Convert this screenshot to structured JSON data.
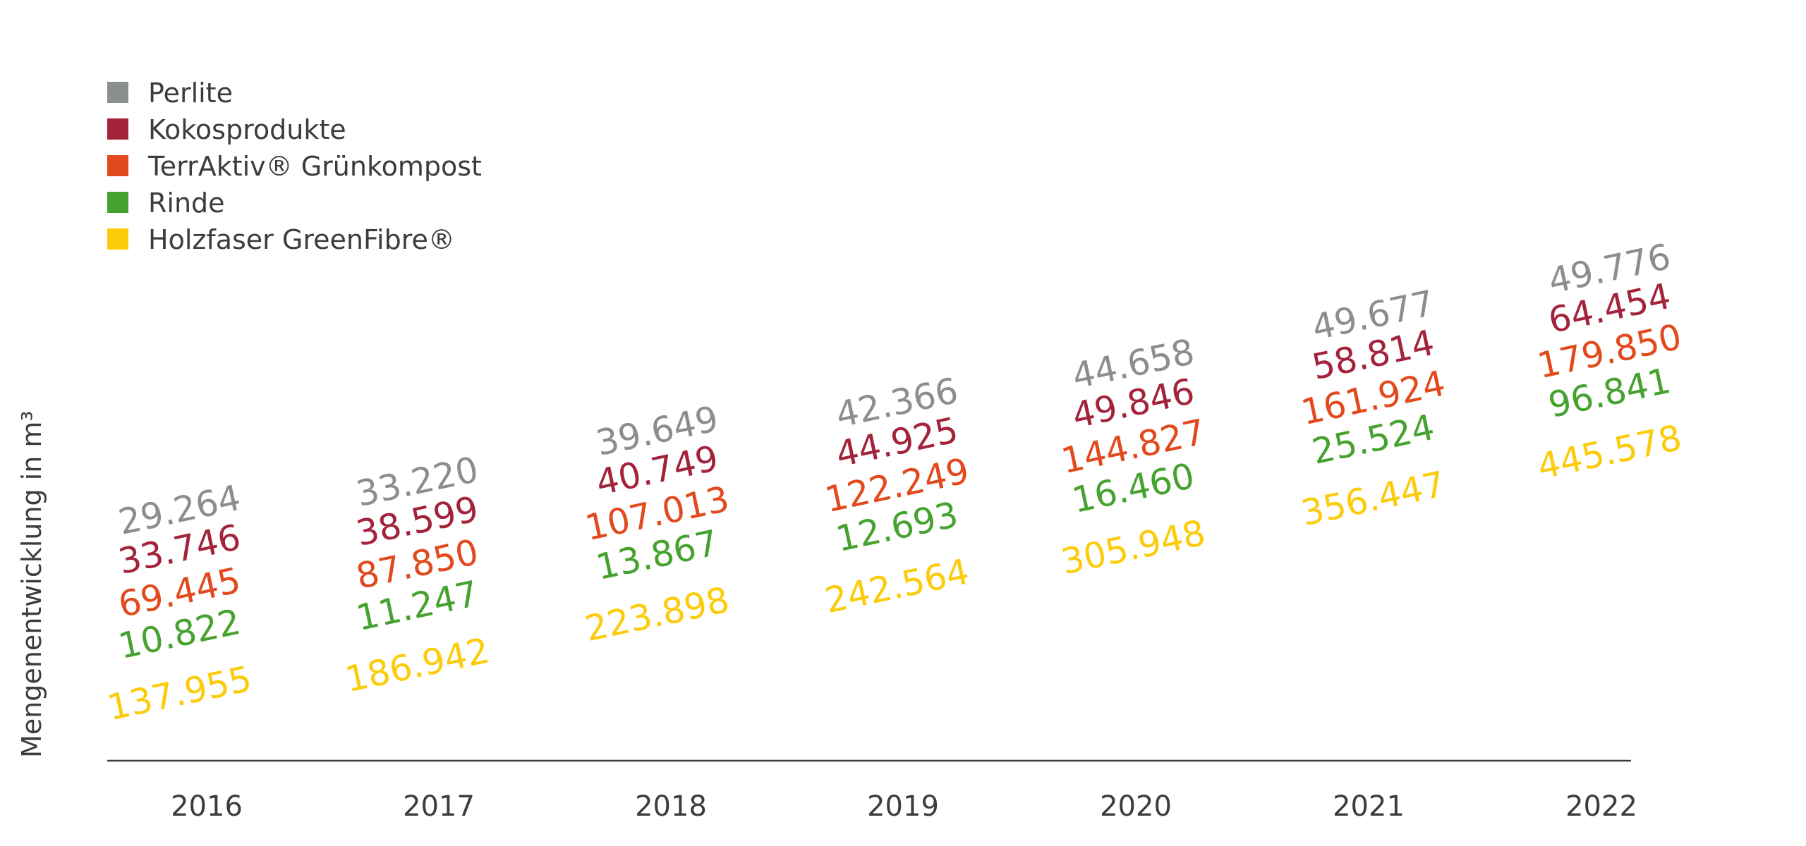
{
  "chart_data": {
    "type": "scatter",
    "title": "",
    "xlabel": "",
    "ylabel": "Mengenentwicklung in m³",
    "categories": [
      "2016",
      "2017",
      "2018",
      "2019",
      "2020",
      "2021",
      "2022"
    ],
    "legend_position": "top-left",
    "grid": false,
    "ylim": [
      0,
      450000
    ],
    "series": [
      {
        "name": "Perlite",
        "color": "#8a8f8e",
        "values": [
          29264,
          33220,
          39649,
          42366,
          44658,
          49677,
          49776
        ],
        "labels": [
          "29.264",
          "33.220",
          "39.649",
          "42.366",
          "44.658",
          "49.677",
          "49.776"
        ]
      },
      {
        "name": "Kokosprodukte",
        "color": "#a3233b",
        "values": [
          33746,
          38599,
          40749,
          44925,
          49846,
          58814,
          64454
        ],
        "labels": [
          "33.746",
          "38.599",
          "40.749",
          "44.925",
          "49.846",
          "58.814",
          "64.454"
        ]
      },
      {
        "name": "TerrAktiv® Grünkompost",
        "color": "#e2491c",
        "values": [
          69445,
          87850,
          107013,
          122249,
          144827,
          161924,
          179850
        ],
        "labels": [
          "69.445",
          "87.850",
          "107.013",
          "122.249",
          "144.827",
          "161.924",
          "179.850"
        ]
      },
      {
        "name": "Rinde",
        "color": "#46a22f",
        "values": [
          10822,
          11247,
          13867,
          12693,
          16460,
          25524,
          96841
        ],
        "labels": [
          "10.822",
          "11.247",
          "13.867",
          "12.693",
          "16.460",
          "25.524",
          "96.841"
        ]
      },
      {
        "name": "Holzfaser GreenFibre®",
        "color": "#fccb0a",
        "values": [
          137955,
          186942,
          223898,
          242564,
          305948,
          356447,
          445578
        ],
        "labels": [
          "137.955",
          "186.942",
          "223.898",
          "242.564",
          "305.948",
          "356.447",
          "445.578"
        ]
      }
    ]
  }
}
